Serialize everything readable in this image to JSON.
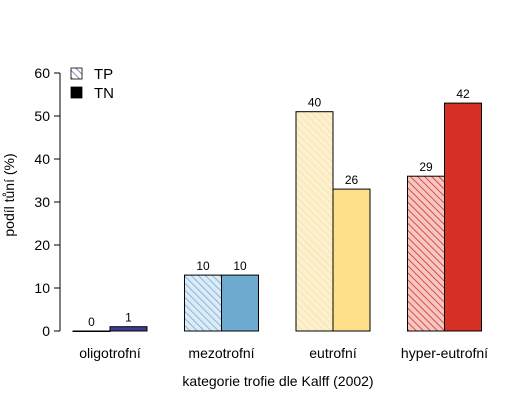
{
  "chart_data": {
    "type": "bar",
    "xlabel": "kategorie trofie dle Kalff (2002)",
    "ylabel": "podíl tůní (%)",
    "ylim": [
      0,
      60
    ],
    "yticks": [
      0,
      10,
      20,
      30,
      40,
      50,
      60
    ],
    "categories": [
      "oligotrofní",
      "mezotrofní",
      "eutrofní",
      "hyper-eutrofní"
    ],
    "legend_position": "top-left",
    "series": [
      {
        "name": "TP",
        "pattern": "hatched",
        "values": [
          0,
          13,
          51,
          36
        ],
        "labels": [
          "0",
          "10",
          "40",
          "29"
        ],
        "colors": [
          "#ffffff",
          "#deebf7",
          "#fdf0cf",
          "#f4c7c3"
        ],
        "stroke_colors": [
          "#3a3f94",
          "#6aaed6",
          "#f5e1a4",
          "#d73027"
        ]
      },
      {
        "name": "TN",
        "pattern": "solid",
        "values": [
          1,
          13,
          33,
          53
        ],
        "labels": [
          "1",
          "10",
          "26",
          "42"
        ],
        "colors": [
          "#3a3f94",
          "#6ea9d0",
          "#fee08b",
          "#d73027"
        ]
      }
    ],
    "legend_colors": {
      "TP": "#6a6fb5",
      "TN": "#000000"
    }
  }
}
